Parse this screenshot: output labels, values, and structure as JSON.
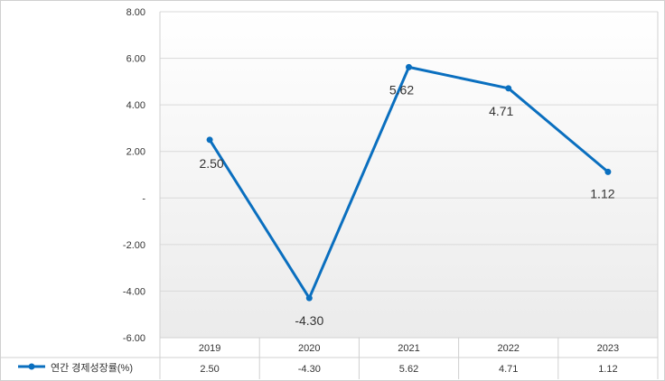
{
  "chart_data": {
    "type": "line",
    "categories": [
      "2019",
      "2020",
      "2021",
      "2022",
      "2023"
    ],
    "series": [
      {
        "name": "연간 경제성장률(%)",
        "values": [
          2.5,
          -4.3,
          5.62,
          4.71,
          1.12
        ],
        "color": "#0a6fbf"
      }
    ],
    "data_labels": [
      "2.50",
      "-4.30",
      "5.62",
      "4.71",
      "1.12"
    ],
    "y_tick_labels": [
      "8.00",
      "6.00",
      "4.00",
      "2.00",
      "-",
      "-2.00",
      "-4.00",
      "-6.00"
    ],
    "y_ticks": [
      8,
      6,
      4,
      2,
      0,
      -2,
      -4,
      -6
    ],
    "ylim": [
      -6,
      8
    ],
    "grid": true,
    "legend": "data-table-left",
    "data_table": true
  }
}
